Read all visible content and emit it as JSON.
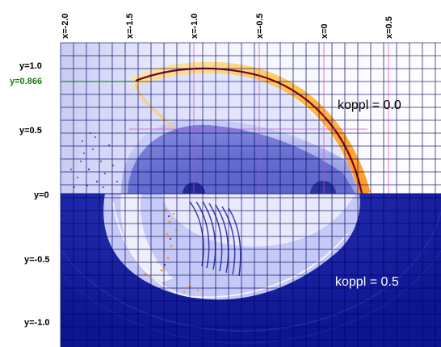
{
  "x_labels": [
    "x=-2.0",
    "x=-1.5",
    "x=-1.0",
    "x=-0.5",
    "x=0",
    "x=0.5"
  ],
  "y_labels": [
    "y=1.0",
    "y=0.866",
    "y=0.5",
    "y=0",
    "y=-0.5",
    "y=-1.0"
  ],
  "panels": [
    {
      "label": "koppl = 0.0",
      "text_color": "#000000"
    },
    {
      "label": "koppl = 0.5",
      "text_color": "#ffffff"
    }
  ],
  "colors": {
    "upper_background": "#e9eaff",
    "lower_background": "#10189a",
    "grid_line": "#000060",
    "magenta_line": "#d040d0",
    "green_line": "#1a8a1a",
    "hot": "#ffb020",
    "dark_red": "#7a0018"
  }
}
